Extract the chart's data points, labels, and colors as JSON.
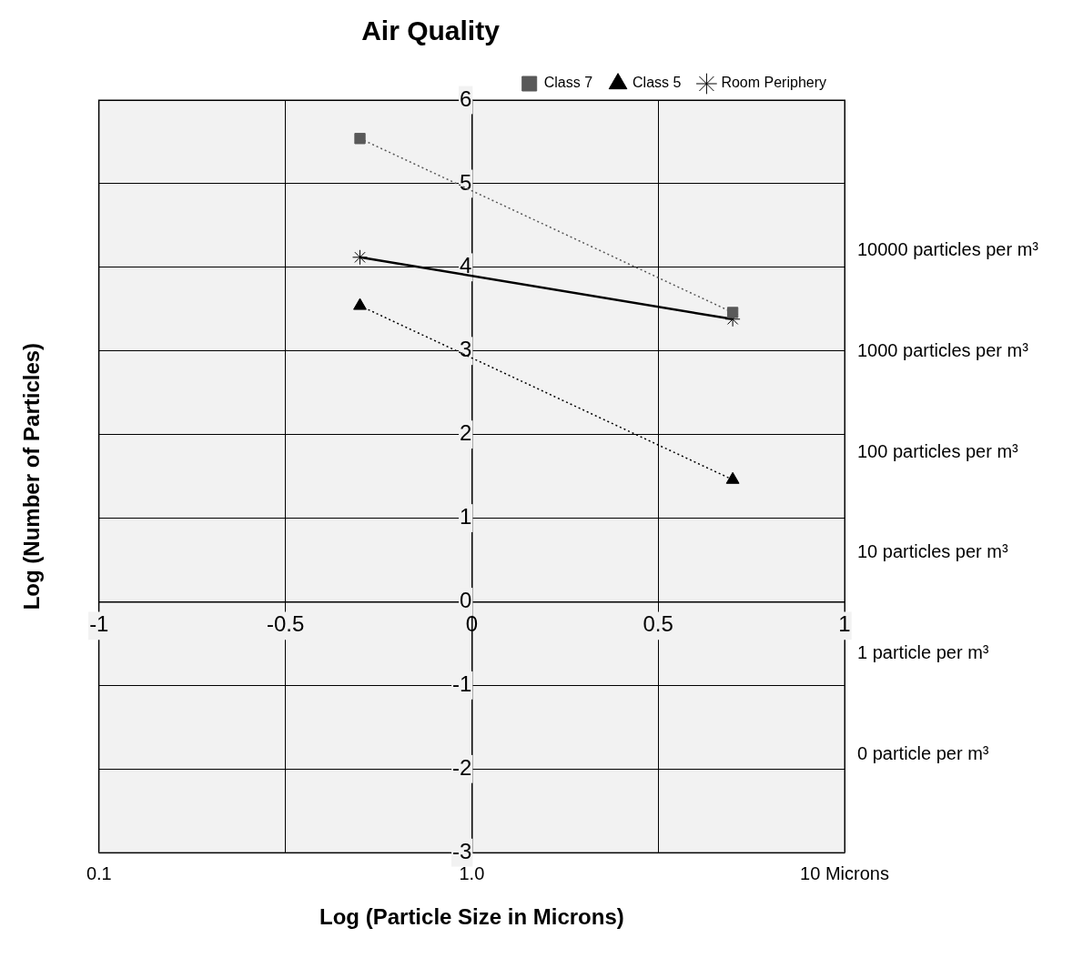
{
  "chart_data": {
    "type": "line",
    "title": "Air Quality",
    "xlabel": "Log (Particle Size in Microns)",
    "ylabel": "Log (Number of Particles)",
    "xlim": [
      -1,
      1
    ],
    "xticks": [
      -1,
      -0.5,
      0,
      0.5,
      1
    ],
    "ylim": [
      -3,
      6
    ],
    "yticks": [
      -3,
      -2,
      -1,
      0,
      1,
      2,
      3,
      4,
      5,
      6
    ],
    "annotations": [
      "0.1",
      "1.0",
      "10 Microns",
      "10000 particles per m³",
      "1000 particles per m³",
      "100 particles per m³",
      "10 particles per m³",
      "1 particle per m³",
      "0 particle per m³"
    ],
    "grid": true,
    "legend": "top right",
    "x": [
      -0.3,
      0.7
    ],
    "series": [
      {
        "name": "Class 7",
        "color": "#595959",
        "values": [
          5.54,
          3.46
        ],
        "marker": "square",
        "line_style": "dotted"
      },
      {
        "name": "Class 5",
        "color": "#000000",
        "values": [
          3.54,
          1.46
        ],
        "marker": "triangle",
        "line_style": "dotted"
      },
      {
        "name": "Room Periphery",
        "color": "#000000",
        "values": [
          4.12,
          3.38
        ],
        "marker": "cross",
        "line_style": "solid"
      }
    ]
  }
}
